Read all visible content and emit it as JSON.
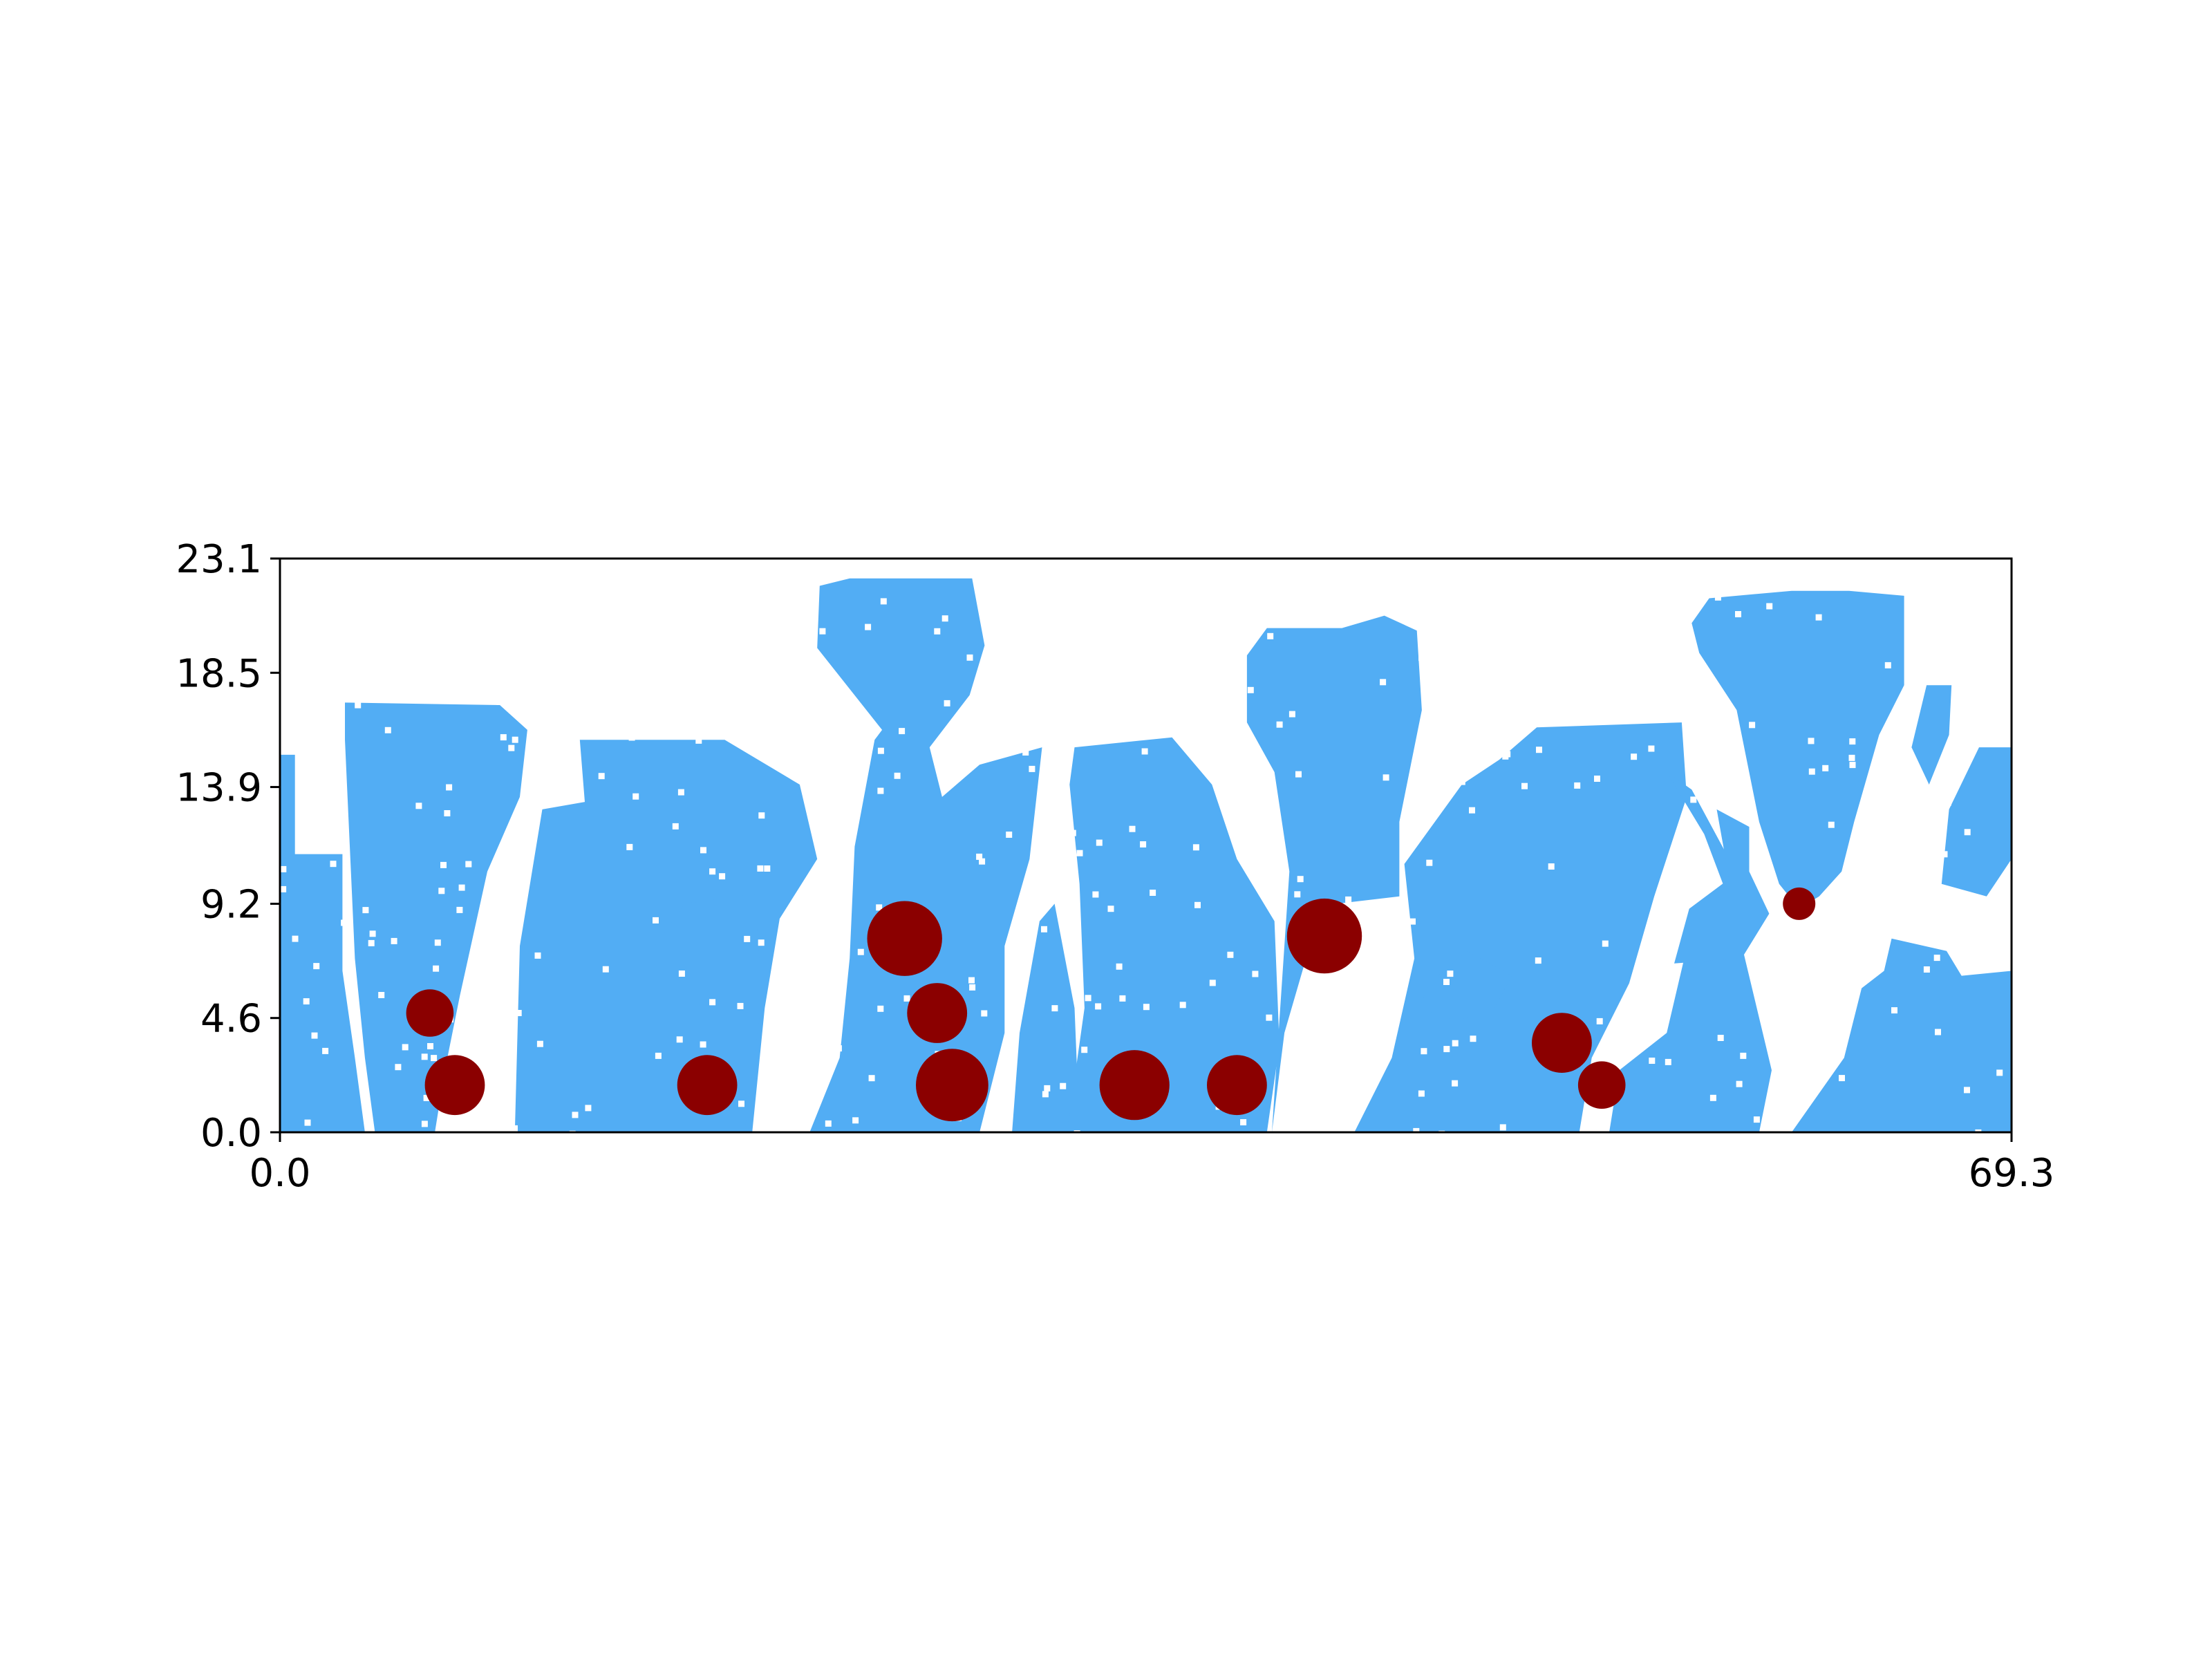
{
  "chart_data": {
    "type": "scatter",
    "title": "",
    "xlabel": "",
    "ylabel": "",
    "xlim": [
      0.0,
      69.3
    ],
    "ylim": [
      0.0,
      23.1
    ],
    "x_ticks": [
      "0.0",
      "69.3"
    ],
    "y_ticks": [
      "0.0",
      "4.6",
      "9.2",
      "13.9",
      "18.5",
      "23.1"
    ],
    "grid": false,
    "legend": "none",
    "colors": {
      "field": "#52adf4",
      "particles": "#8b0000",
      "background": "#ffffff"
    },
    "field_region_note_free": true,
    "blobs": [
      {
        "x": [
          0,
          0,
          2.5,
          2.5,
          0
        ],
        "y": [
          0,
          15.2,
          15.2,
          0,
          0
        ]
      },
      {
        "x": [
          2.6,
          10.0
        ],
        "y": [
          0,
          17.3
        ]
      },
      {
        "x": [
          9.5,
          21.5
        ],
        "y": [
          0,
          15.8
        ]
      },
      {
        "x": [
          21.5,
          28.2
        ],
        "y": [
          0,
          22.3
        ]
      },
      {
        "x": [
          31.5,
          39.8
        ],
        "y": [
          0,
          15.8
        ]
      },
      {
        "x": [
          39.5,
          45.7
        ],
        "y": [
          0,
          20.8
        ]
      },
      {
        "x": [
          44.5,
          58.5
        ],
        "y": [
          0,
          16.5
        ]
      },
      {
        "x": [
          56.5,
          69.3
        ],
        "y": [
          0,
          21.8
        ]
      }
    ],
    "series": [
      {
        "x": [
          6.0,
          7.0,
          17.1,
          25.0,
          26.3,
          26.9,
          34.2,
          38.3,
          41.8,
          51.3,
          52.9,
          60.8
        ],
        "y": [
          4.8,
          1.9,
          1.9,
          7.8,
          4.8,
          1.9,
          1.9,
          1.9,
          7.9,
          3.6,
          1.9,
          9.2
        ],
        "r": [
          0.95,
          1.2,
          1.2,
          1.5,
          1.2,
          1.45,
          1.4,
          1.2,
          1.5,
          1.2,
          0.95,
          0.65
        ]
      }
    ]
  }
}
